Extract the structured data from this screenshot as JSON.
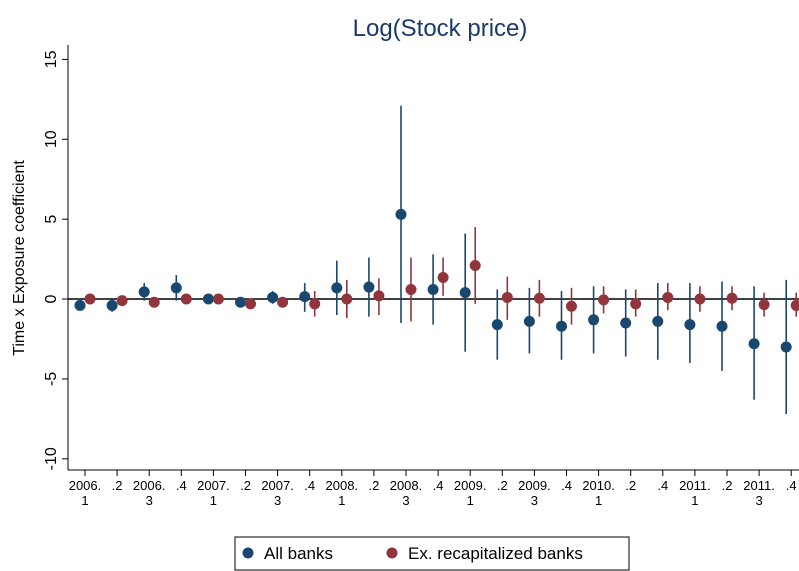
{
  "chart_data": {
    "type": "errorbar",
    "title": "Log(Stock price)",
    "y_label": "Time x Exposure coefficient",
    "categories": [
      "2006.\n1",
      ".2",
      "2006.\n3",
      ".4",
      "2007.\n1",
      ".2",
      "2007.\n3",
      ".4",
      "2008.\n1",
      ".2",
      "2008.\n3",
      ".4",
      "2009.\n1",
      ".2",
      "2009.\n3",
      ".4",
      "2010.\n1",
      ".2",
      ".4",
      "2011.\n1",
      ".2",
      "2011.\n3",
      ".4"
    ],
    "series": [
      {
        "name": "All banks",
        "color": "#1a476f",
        "values": [
          -0.4,
          -0.4,
          0.45,
          0.7,
          0.0,
          -0.2,
          0.1,
          0.15,
          0.7,
          0.75,
          5.3,
          0.6,
          0.4,
          -1.6,
          -1.4,
          -1.7,
          -1.3,
          -1.5,
          -1.4,
          -1.6,
          -1.7,
          -2.8,
          -3.0
        ],
        "lower": [
          -0.7,
          -0.8,
          -0.1,
          -0.1,
          -0.2,
          -0.5,
          -0.3,
          -0.8,
          -1.0,
          -1.1,
          -1.5,
          -1.6,
          -3.3,
          -3.8,
          -3.4,
          -3.8,
          -3.4,
          -3.6,
          -3.8,
          -4.0,
          -4.5,
          -6.3,
          -7.2
        ],
        "upper": [
          -0.1,
          -0.1,
          1.0,
          1.5,
          0.2,
          0.1,
          0.5,
          1.0,
          2.4,
          2.6,
          12.1,
          2.8,
          4.1,
          0.6,
          0.7,
          0.5,
          0.8,
          0.6,
          1.0,
          1.0,
          1.1,
          0.8,
          1.2
        ]
      },
      {
        "name": "Ex. recapitalized banks",
        "color": "#90353b",
        "values": [
          0.0,
          -0.1,
          -0.2,
          0.0,
          0.0,
          -0.3,
          -0.2,
          -0.3,
          0.0,
          0.2,
          0.6,
          1.35,
          2.1,
          0.1,
          0.05,
          -0.45,
          -0.05,
          -0.3,
          0.1,
          0.0,
          0.05,
          -0.35,
          -0.4
        ],
        "lower": [
          -0.1,
          -0.3,
          -0.4,
          -0.2,
          -0.2,
          -0.5,
          -0.5,
          -1.1,
          -1.2,
          -1.0,
          -1.4,
          0.2,
          -0.3,
          -1.3,
          -1.1,
          -1.6,
          -0.9,
          -1.1,
          -0.7,
          -0.8,
          -0.7,
          -1.1,
          -1.1
        ],
        "upper": [
          0.1,
          0.1,
          0.0,
          0.2,
          0.2,
          -0.1,
          0.1,
          0.5,
          1.2,
          1.3,
          2.6,
          2.6,
          4.5,
          1.4,
          1.2,
          0.7,
          0.8,
          0.6,
          1.0,
          0.8,
          0.8,
          0.4,
          0.4
        ]
      }
    ],
    "ylim": [
      -10.7,
      15.9
    ],
    "yticks": [
      15,
      10,
      5,
      0,
      -5,
      -10
    ],
    "zero_line": true
  }
}
